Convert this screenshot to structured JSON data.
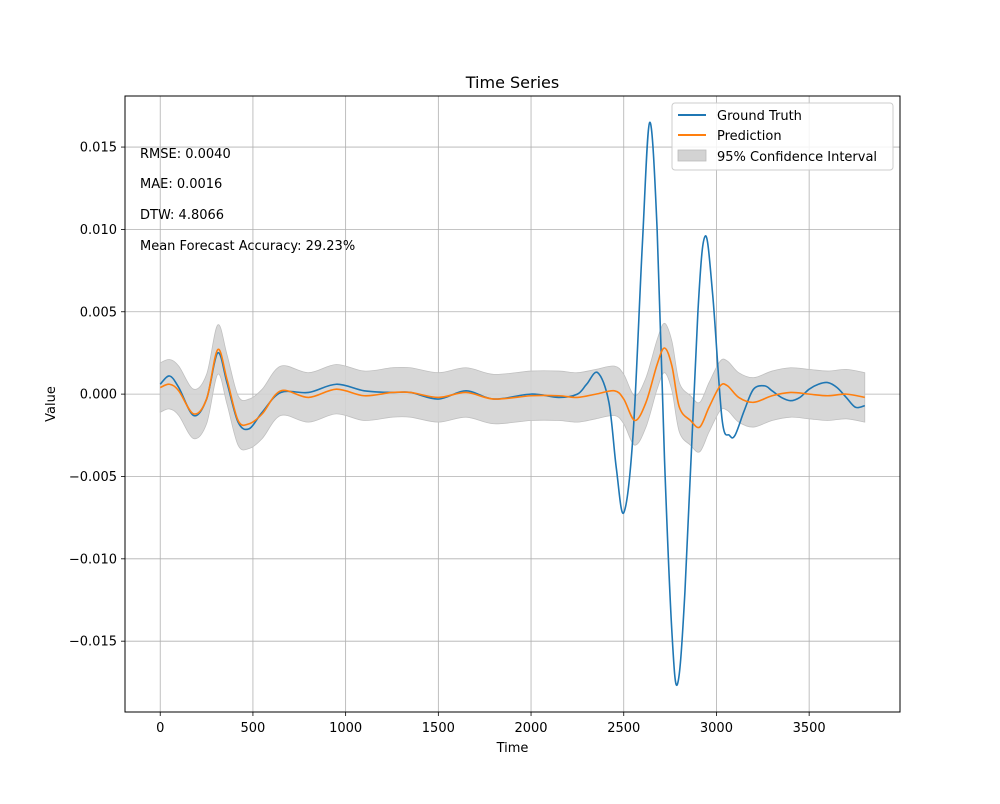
{
  "chart_data": {
    "type": "line",
    "title": "Time Series",
    "xlabel": "Time",
    "ylabel": "Value",
    "xlim": [
      -190,
      3990
    ],
    "ylim": [
      -0.0193,
      0.0181
    ],
    "xticks": [
      0,
      500,
      1000,
      1500,
      2000,
      2500,
      3000,
      3500
    ],
    "xtick_labels": [
      "0",
      "500",
      "1000",
      "1500",
      "2000",
      "2500",
      "3000",
      "3500"
    ],
    "yticks": [
      -0.015,
      -0.01,
      -0.005,
      0.0,
      0.005,
      0.01,
      0.015
    ],
    "ytick_labels": [
      "−0.015",
      "−0.010",
      "−0.005",
      "0.000",
      "0.005",
      "0.010",
      "0.015"
    ],
    "grid": true,
    "legend_position": "top-right",
    "annotations": [
      "RMSE: 0.0040",
      "MAE: 0.0016",
      "DTW: 4.8066",
      "Mean Forecast Accuracy: 29.23%"
    ],
    "colors": {
      "ground_truth": "#1f77b4",
      "prediction": "#ff7f0e",
      "confidence": "#d3d3d3"
    },
    "series": [
      {
        "name": "Ground Truth",
        "x": [
          0,
          50,
          100,
          180,
          250,
          310,
          360,
          420,
          480,
          550,
          650,
          800,
          950,
          1100,
          1250,
          1350,
          1500,
          1650,
          1800,
          2000,
          2150,
          2250,
          2300,
          2360,
          2420,
          2460,
          2500,
          2550,
          2600,
          2640,
          2680,
          2720,
          2760,
          2790,
          2830,
          2900,
          2940,
          2980,
          3030,
          3070,
          3100,
          3150,
          3200,
          3260,
          3300,
          3350,
          3400,
          3450,
          3500,
          3550,
          3600,
          3650,
          3700,
          3750,
          3800
        ],
        "y": [
          0.0006,
          0.0011,
          0.0004,
          -0.0013,
          -0.0003,
          0.0025,
          0.0007,
          -0.0017,
          -0.0021,
          -0.0011,
          0.0001,
          0.0001,
          0.0006,
          0.0002,
          0.0001,
          0.0001,
          -0.0003,
          0.0002,
          -0.0003,
          0.0,
          -0.0002,
          0.0,
          0.0006,
          0.0013,
          -0.0005,
          -0.0045,
          -0.0072,
          -0.0025,
          0.009,
          0.0165,
          0.01,
          -0.004,
          -0.0145,
          -0.0176,
          -0.012,
          0.005,
          0.0096,
          0.006,
          -0.0015,
          -0.0025,
          -0.0025,
          -0.001,
          0.0003,
          0.0005,
          0.0002,
          -0.0002,
          -0.0004,
          -0.0002,
          0.0003,
          0.0006,
          0.0007,
          0.0004,
          -0.0002,
          -0.0008,
          -0.0007
        ]
      },
      {
        "name": "Prediction",
        "x": [
          0,
          50,
          100,
          180,
          250,
          310,
          360,
          420,
          480,
          550,
          650,
          800,
          950,
          1100,
          1250,
          1350,
          1500,
          1650,
          1800,
          2000,
          2150,
          2250,
          2350,
          2450,
          2500,
          2560,
          2620,
          2680,
          2720,
          2760,
          2800,
          2860,
          2910,
          2960,
          3020,
          3060,
          3120,
          3200,
          3300,
          3400,
          3500,
          3600,
          3700,
          3800
        ],
        "y": [
          0.0004,
          0.0006,
          0.0002,
          -0.0012,
          -0.0003,
          0.0027,
          0.0009,
          -0.0016,
          -0.0018,
          -0.0012,
          0.0002,
          -0.0002,
          0.0003,
          -0.0001,
          0.0001,
          0.0001,
          -0.0002,
          0.0001,
          -0.0003,
          -0.0001,
          -0.0001,
          -0.0002,
          0.0,
          0.0002,
          -0.0003,
          -0.0016,
          -0.0005,
          0.0018,
          0.0028,
          0.0017,
          -0.0008,
          -0.0016,
          -0.002,
          -0.0008,
          0.0005,
          0.0005,
          -0.0002,
          -0.0005,
          -0.0001,
          0.0001,
          0.0,
          -0.0001,
          0.0,
          -0.0002
        ]
      },
      {
        "name": "95% Confidence Interval",
        "x": [
          0,
          50,
          100,
          180,
          250,
          310,
          360,
          420,
          480,
          550,
          650,
          800,
          950,
          1100,
          1250,
          1350,
          1500,
          1650,
          1800,
          2000,
          2150,
          2250,
          2350,
          2450,
          2500,
          2560,
          2620,
          2680,
          2720,
          2760,
          2800,
          2860,
          2910,
          2960,
          3020,
          3060,
          3120,
          3200,
          3300,
          3400,
          3500,
          3600,
          3700,
          3800
        ],
        "upper": [
          0.0019,
          0.0021,
          0.0017,
          0.0003,
          0.0012,
          0.0042,
          0.0024,
          -0.0001,
          -0.0003,
          0.0003,
          0.0017,
          0.0013,
          0.0018,
          0.0014,
          0.0016,
          0.0016,
          0.0013,
          0.0016,
          0.0012,
          0.0014,
          0.0014,
          0.0013,
          0.0015,
          0.0017,
          0.0012,
          -0.0001,
          0.001,
          0.0033,
          0.0043,
          0.0032,
          0.0007,
          -0.0001,
          -0.0005,
          0.0007,
          0.002,
          0.002,
          0.0013,
          0.001,
          0.0014,
          0.0016,
          0.0015,
          0.0014,
          0.0015,
          0.0013
        ],
        "lower": [
          -0.0011,
          -0.0009,
          -0.0013,
          -0.0027,
          -0.0018,
          0.0012,
          -0.0006,
          -0.0031,
          -0.0033,
          -0.0027,
          -0.0013,
          -0.0017,
          -0.0012,
          -0.0016,
          -0.0014,
          -0.0014,
          -0.0017,
          -0.0014,
          -0.0018,
          -0.0016,
          -0.0016,
          -0.0017,
          -0.0015,
          -0.0013,
          -0.0018,
          -0.0031,
          -0.002,
          0.0003,
          0.0013,
          0.0002,
          -0.0023,
          -0.0031,
          -0.0035,
          -0.0023,
          -0.001,
          -0.001,
          -0.0017,
          -0.002,
          -0.0016,
          -0.0014,
          -0.0015,
          -0.0016,
          -0.0015,
          -0.0017
        ]
      }
    ]
  }
}
